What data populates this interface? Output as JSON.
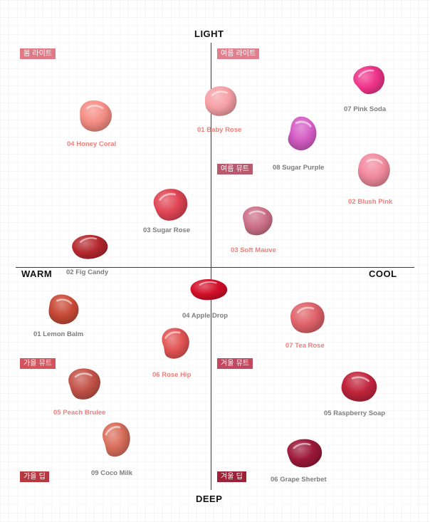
{
  "axes": {
    "top": "LIGHT",
    "bottom": "DEEP",
    "left": "WARM",
    "right": "COOL"
  },
  "season_tags": [
    {
      "text": "봄 라이트",
      "color": "#e07a86"
    },
    {
      "text": "여름 라이트",
      "color": "#e27f8e"
    },
    {
      "text": "여름 뮤트",
      "color": "#b85a6e"
    },
    {
      "text": "가을 뮤트",
      "color": "#d3545c"
    },
    {
      "text": "겨울 뮤트",
      "color": "#c2485f"
    },
    {
      "text": "가을 딥",
      "color": "#b8383f"
    },
    {
      "text": "겨울 딥",
      "color": "#9c2238"
    }
  ],
  "shades": [
    {
      "name": "07 Pink Soda",
      "swatch_color": "#f0348a",
      "label_color": "#7d7d7d"
    },
    {
      "name": "04 Honey Coral",
      "swatch_color": "#f48d84",
      "label_color": "#ef7f7a"
    },
    {
      "name": "01 Baby Rose",
      "swatch_color": "#f6a0a6",
      "label_color": "#ef7f7a"
    },
    {
      "name": "08 Sugar Purple",
      "swatch_color": "#d45cc4",
      "label_color": "#7d7d7d"
    },
    {
      "name": "02 Blush Pink",
      "swatch_color": "#f28a9e",
      "label_color": "#ef7f7a"
    },
    {
      "name": "03 Sugar Rose",
      "swatch_color": "#e04554",
      "label_color": "#7d7d7d"
    },
    {
      "name": "03 Soft Mauve",
      "swatch_color": "#cc7088",
      "label_color": "#ef7f7a"
    },
    {
      "name": "02 Fig Candy",
      "swatch_color": "#b4282e",
      "label_color": "#7d7d7d"
    },
    {
      "name": "04 Apple Drop",
      "swatch_color": "#d20f28",
      "label_color": "#7d7d7d"
    },
    {
      "name": "01 Lemon Balm",
      "swatch_color": "#c84a36",
      "label_color": "#7d7d7d"
    },
    {
      "name": "07 Tea Rose",
      "swatch_color": "#e0626a",
      "label_color": "#ef7f7a"
    },
    {
      "name": "06 Rose Hip",
      "swatch_color": "#e25454",
      "label_color": "#ef7f7a"
    },
    {
      "name": "05 Peach Brulee",
      "swatch_color": "#c25248",
      "label_color": "#ef7f7a"
    },
    {
      "name": "05 Raspberry Soap",
      "swatch_color": "#c0243c",
      "label_color": "#7d7d7d"
    },
    {
      "name": "09 Coco Milk",
      "swatch_color": "#d96e5c",
      "label_color": "#7d7d7d"
    },
    {
      "name": "06 Grape Sherbet",
      "swatch_color": "#9c1838",
      "label_color": "#7d7d7d"
    }
  ]
}
